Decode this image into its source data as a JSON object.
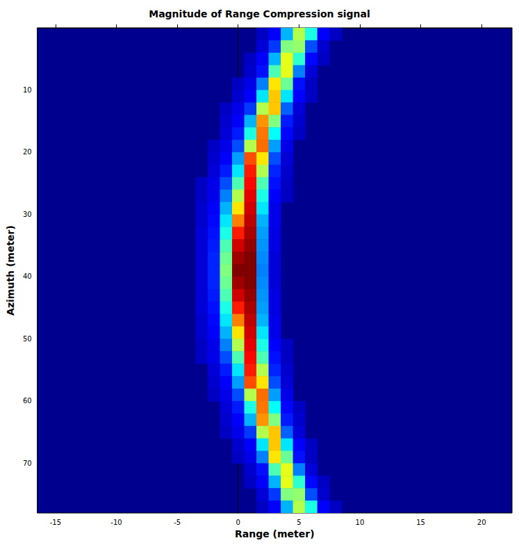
{
  "chart_data": {
    "type": "heatmap",
    "title": "Magnitude of Range Compression signal",
    "x_label": "Range (meter)",
    "y_label": "Azimuth (meter)",
    "xlim": [
      -16.5,
      22.5
    ],
    "ylim": [
      0,
      78
    ],
    "xticks": [
      -15,
      -10,
      -5,
      0,
      5,
      10,
      15,
      20
    ],
    "yticks": [
      10,
      20,
      30,
      40,
      50,
      60,
      70
    ],
    "grid": false,
    "cell_size": [
      1,
      2
    ],
    "value_range": [
      0,
      1
    ],
    "cells": [
      [
        2,
        1,
        0.06
      ],
      [
        3,
        1,
        0.12
      ],
      [
        4,
        1,
        0.3
      ],
      [
        5,
        1,
        0.55
      ],
      [
        6,
        1,
        0.4
      ],
      [
        7,
        1,
        0.12
      ],
      [
        8,
        1,
        0.06
      ],
      [
        2,
        3,
        0.08
      ],
      [
        3,
        3,
        0.18
      ],
      [
        4,
        3,
        0.5
      ],
      [
        5,
        3,
        0.52
      ],
      [
        6,
        3,
        0.2
      ],
      [
        7,
        3,
        0.07
      ],
      [
        1,
        5,
        0.06
      ],
      [
        2,
        5,
        0.12
      ],
      [
        3,
        5,
        0.3
      ],
      [
        4,
        5,
        0.6
      ],
      [
        5,
        5,
        0.42
      ],
      [
        6,
        5,
        0.13
      ],
      [
        7,
        5,
        0.06
      ],
      [
        1,
        7,
        0.07
      ],
      [
        2,
        7,
        0.14
      ],
      [
        3,
        7,
        0.45
      ],
      [
        4,
        7,
        0.6
      ],
      [
        5,
        7,
        0.25
      ],
      [
        6,
        7,
        0.08
      ],
      [
        0,
        9,
        0.06
      ],
      [
        1,
        9,
        0.1
      ],
      [
        2,
        9,
        0.25
      ],
      [
        3,
        9,
        0.65
      ],
      [
        4,
        9,
        0.48
      ],
      [
        5,
        9,
        0.14
      ],
      [
        6,
        9,
        0.06
      ],
      [
        0,
        11,
        0.07
      ],
      [
        1,
        11,
        0.12
      ],
      [
        2,
        11,
        0.35
      ],
      [
        3,
        11,
        0.68
      ],
      [
        4,
        11,
        0.35
      ],
      [
        5,
        11,
        0.12
      ],
      [
        6,
        11,
        0.06
      ],
      [
        -1,
        13,
        0.06
      ],
      [
        0,
        13,
        0.1
      ],
      [
        1,
        13,
        0.18
      ],
      [
        2,
        13,
        0.55
      ],
      [
        3,
        13,
        0.68
      ],
      [
        4,
        13,
        0.22
      ],
      [
        5,
        13,
        0.08
      ],
      [
        -1,
        15,
        0.07
      ],
      [
        0,
        15,
        0.12
      ],
      [
        1,
        15,
        0.3
      ],
      [
        2,
        15,
        0.73
      ],
      [
        3,
        15,
        0.5
      ],
      [
        4,
        15,
        0.15
      ],
      [
        5,
        15,
        0.07
      ],
      [
        -1,
        17,
        0.08
      ],
      [
        0,
        17,
        0.15
      ],
      [
        1,
        17,
        0.4
      ],
      [
        2,
        17,
        0.76
      ],
      [
        3,
        17,
        0.38
      ],
      [
        4,
        17,
        0.13
      ],
      [
        5,
        17,
        0.06
      ],
      [
        -2,
        19,
        0.06
      ],
      [
        -1,
        19,
        0.1
      ],
      [
        0,
        19,
        0.2
      ],
      [
        1,
        19,
        0.55
      ],
      [
        2,
        19,
        0.77
      ],
      [
        3,
        19,
        0.28
      ],
      [
        4,
        19,
        0.1
      ],
      [
        -2,
        21,
        0.07
      ],
      [
        -1,
        21,
        0.12
      ],
      [
        0,
        21,
        0.28
      ],
      [
        1,
        21,
        0.8
      ],
      [
        2,
        21,
        0.65
      ],
      [
        3,
        21,
        0.2
      ],
      [
        4,
        21,
        0.08
      ],
      [
        -2,
        23,
        0.08
      ],
      [
        -1,
        23,
        0.15
      ],
      [
        0,
        23,
        0.35
      ],
      [
        1,
        23,
        0.85
      ],
      [
        2,
        23,
        0.55
      ],
      [
        3,
        23,
        0.16
      ],
      [
        4,
        23,
        0.07
      ],
      [
        -3,
        25,
        0.06
      ],
      [
        -2,
        25,
        0.1
      ],
      [
        -1,
        25,
        0.2
      ],
      [
        0,
        25,
        0.45
      ],
      [
        1,
        25,
        0.87
      ],
      [
        2,
        25,
        0.45
      ],
      [
        3,
        25,
        0.14
      ],
      [
        4,
        25,
        0.06
      ],
      [
        -3,
        27,
        0.06
      ],
      [
        -2,
        27,
        0.1
      ],
      [
        -1,
        27,
        0.25
      ],
      [
        0,
        27,
        0.55
      ],
      [
        1,
        27,
        0.9
      ],
      [
        2,
        27,
        0.4
      ],
      [
        3,
        27,
        0.12
      ],
      [
        4,
        27,
        0.06
      ],
      [
        -3,
        29,
        0.07
      ],
      [
        -2,
        29,
        0.12
      ],
      [
        -1,
        29,
        0.3
      ],
      [
        0,
        29,
        0.65
      ],
      [
        1,
        29,
        0.92
      ],
      [
        2,
        29,
        0.35
      ],
      [
        3,
        29,
        0.1
      ],
      [
        -3,
        31,
        0.07
      ],
      [
        -2,
        31,
        0.13
      ],
      [
        -1,
        31,
        0.35
      ],
      [
        0,
        31,
        0.75
      ],
      [
        1,
        31,
        0.94
      ],
      [
        2,
        31,
        0.3
      ],
      [
        3,
        31,
        0.1
      ],
      [
        -3,
        33,
        0.08
      ],
      [
        -2,
        33,
        0.14
      ],
      [
        -1,
        33,
        0.4
      ],
      [
        0,
        33,
        0.85
      ],
      [
        1,
        33,
        0.96
      ],
      [
        2,
        33,
        0.28
      ],
      [
        3,
        33,
        0.09
      ],
      [
        -3,
        35,
        0.08
      ],
      [
        -2,
        35,
        0.15
      ],
      [
        -1,
        35,
        0.45
      ],
      [
        0,
        35,
        0.92
      ],
      [
        1,
        35,
        0.98
      ],
      [
        2,
        35,
        0.27
      ],
      [
        3,
        35,
        0.09
      ],
      [
        -3,
        37,
        0.08
      ],
      [
        -2,
        37,
        0.16
      ],
      [
        -1,
        37,
        0.48
      ],
      [
        0,
        37,
        0.97
      ],
      [
        1,
        37,
        1.0
      ],
      [
        2,
        37,
        0.26
      ],
      [
        3,
        37,
        0.08
      ],
      [
        -3,
        39,
        0.08
      ],
      [
        -2,
        39,
        0.16
      ],
      [
        -1,
        39,
        0.5
      ],
      [
        0,
        39,
        1.0
      ],
      [
        1,
        39,
        1.0
      ],
      [
        2,
        39,
        0.25
      ],
      [
        3,
        39,
        0.08
      ],
      [
        -3,
        41,
        0.08
      ],
      [
        -2,
        41,
        0.16
      ],
      [
        -1,
        41,
        0.48
      ],
      [
        0,
        41,
        0.97
      ],
      [
        1,
        41,
        1.0
      ],
      [
        2,
        41,
        0.26
      ],
      [
        3,
        41,
        0.08
      ],
      [
        -3,
        43,
        0.08
      ],
      [
        -2,
        43,
        0.15
      ],
      [
        -1,
        43,
        0.45
      ],
      [
        0,
        43,
        0.92
      ],
      [
        1,
        43,
        0.98
      ],
      [
        2,
        43,
        0.27
      ],
      [
        3,
        43,
        0.09
      ],
      [
        -3,
        45,
        0.08
      ],
      [
        -2,
        45,
        0.14
      ],
      [
        -1,
        45,
        0.4
      ],
      [
        0,
        45,
        0.85
      ],
      [
        1,
        45,
        0.96
      ],
      [
        2,
        45,
        0.28
      ],
      [
        3,
        45,
        0.09
      ],
      [
        -3,
        47,
        0.07
      ],
      [
        -2,
        47,
        0.13
      ],
      [
        -1,
        47,
        0.35
      ],
      [
        0,
        47,
        0.75
      ],
      [
        1,
        47,
        0.94
      ],
      [
        2,
        47,
        0.3
      ],
      [
        3,
        47,
        0.1
      ],
      [
        -3,
        49,
        0.07
      ],
      [
        -2,
        49,
        0.12
      ],
      [
        -1,
        49,
        0.3
      ],
      [
        0,
        49,
        0.65
      ],
      [
        1,
        49,
        0.92
      ],
      [
        2,
        49,
        0.35
      ],
      [
        3,
        49,
        0.1
      ],
      [
        -3,
        51,
        0.06
      ],
      [
        -2,
        51,
        0.1
      ],
      [
        -1,
        51,
        0.25
      ],
      [
        0,
        51,
        0.55
      ],
      [
        1,
        51,
        0.9
      ],
      [
        2,
        51,
        0.4
      ],
      [
        3,
        51,
        0.12
      ],
      [
        4,
        51,
        0.06
      ],
      [
        -3,
        53,
        0.06
      ],
      [
        -2,
        53,
        0.1
      ],
      [
        -1,
        53,
        0.2
      ],
      [
        0,
        53,
        0.45
      ],
      [
        1,
        53,
        0.87
      ],
      [
        2,
        53,
        0.45
      ],
      [
        3,
        53,
        0.14
      ],
      [
        4,
        53,
        0.06
      ],
      [
        -2,
        55,
        0.08
      ],
      [
        -1,
        55,
        0.15
      ],
      [
        0,
        55,
        0.35
      ],
      [
        1,
        55,
        0.85
      ],
      [
        2,
        55,
        0.55
      ],
      [
        3,
        55,
        0.16
      ],
      [
        4,
        55,
        0.07
      ],
      [
        -2,
        57,
        0.07
      ],
      [
        -1,
        57,
        0.12
      ],
      [
        0,
        57,
        0.28
      ],
      [
        1,
        57,
        0.8
      ],
      [
        2,
        57,
        0.65
      ],
      [
        3,
        57,
        0.2
      ],
      [
        4,
        57,
        0.08
      ],
      [
        -2,
        59,
        0.06
      ],
      [
        -1,
        59,
        0.1
      ],
      [
        0,
        59,
        0.2
      ],
      [
        1,
        59,
        0.55
      ],
      [
        2,
        59,
        0.77
      ],
      [
        3,
        59,
        0.28
      ],
      [
        4,
        59,
        0.1
      ],
      [
        -1,
        61,
        0.08
      ],
      [
        0,
        61,
        0.15
      ],
      [
        1,
        61,
        0.4
      ],
      [
        2,
        61,
        0.76
      ],
      [
        3,
        61,
        0.38
      ],
      [
        4,
        61,
        0.13
      ],
      [
        5,
        61,
        0.06
      ],
      [
        -1,
        63,
        0.07
      ],
      [
        0,
        63,
        0.12
      ],
      [
        1,
        63,
        0.3
      ],
      [
        2,
        63,
        0.73
      ],
      [
        3,
        63,
        0.5
      ],
      [
        4,
        63,
        0.15
      ],
      [
        5,
        63,
        0.07
      ],
      [
        -1,
        65,
        0.06
      ],
      [
        0,
        65,
        0.1
      ],
      [
        1,
        65,
        0.18
      ],
      [
        2,
        65,
        0.55
      ],
      [
        3,
        65,
        0.68
      ],
      [
        4,
        65,
        0.22
      ],
      [
        5,
        65,
        0.08
      ],
      [
        0,
        67,
        0.07
      ],
      [
        1,
        67,
        0.12
      ],
      [
        2,
        67,
        0.35
      ],
      [
        3,
        67,
        0.68
      ],
      [
        4,
        67,
        0.35
      ],
      [
        5,
        67,
        0.12
      ],
      [
        6,
        67,
        0.06
      ],
      [
        0,
        69,
        0.06
      ],
      [
        1,
        69,
        0.1
      ],
      [
        2,
        69,
        0.25
      ],
      [
        3,
        69,
        0.65
      ],
      [
        4,
        69,
        0.48
      ],
      [
        5,
        69,
        0.14
      ],
      [
        6,
        69,
        0.06
      ],
      [
        1,
        71,
        0.07
      ],
      [
        2,
        71,
        0.14
      ],
      [
        3,
        71,
        0.45
      ],
      [
        4,
        71,
        0.6
      ],
      [
        5,
        71,
        0.25
      ],
      [
        6,
        71,
        0.08
      ],
      [
        1,
        73,
        0.06
      ],
      [
        2,
        73,
        0.12
      ],
      [
        3,
        73,
        0.3
      ],
      [
        4,
        73,
        0.6
      ],
      [
        5,
        73,
        0.42
      ],
      [
        6,
        73,
        0.13
      ],
      [
        7,
        73,
        0.06
      ],
      [
        2,
        75,
        0.08
      ],
      [
        3,
        75,
        0.18
      ],
      [
        4,
        75,
        0.5
      ],
      [
        5,
        75,
        0.52
      ],
      [
        6,
        75,
        0.2
      ],
      [
        7,
        75,
        0.07
      ],
      [
        2,
        77,
        0.06
      ],
      [
        3,
        77,
        0.12
      ],
      [
        4,
        77,
        0.3
      ],
      [
        5,
        77,
        0.55
      ],
      [
        6,
        77,
        0.4
      ],
      [
        7,
        77,
        0.12
      ],
      [
        8,
        77,
        0.06
      ]
    ]
  }
}
